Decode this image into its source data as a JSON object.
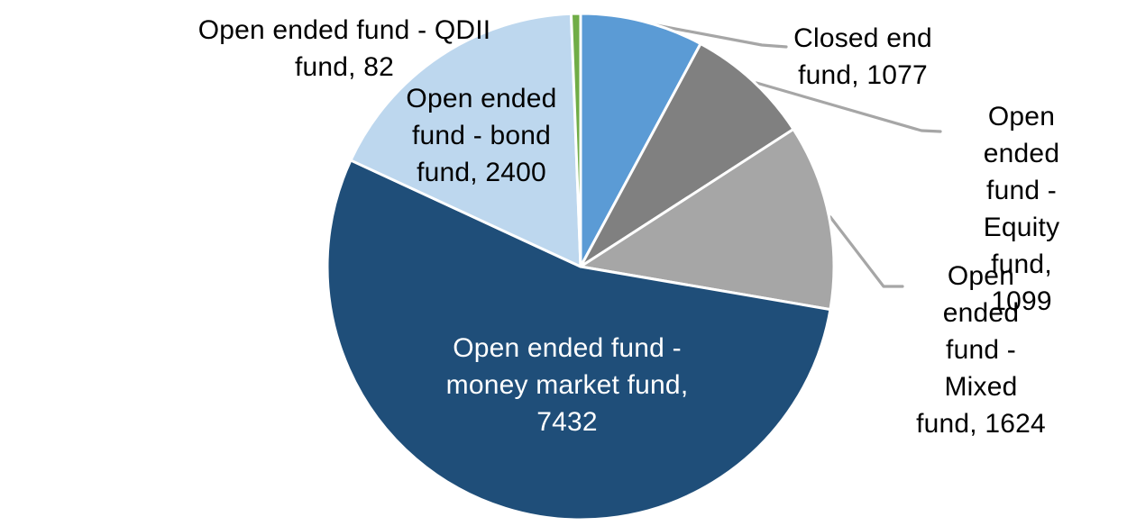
{
  "chart_data": {
    "type": "pie",
    "title": "",
    "legend_position": "none",
    "grid": false,
    "background_color": "#FFFFFF",
    "label_text_color": "#000000",
    "leader_line_color": "#A6A6A6",
    "slice_border_color": "#FFFFFF",
    "start_angle_deg": 0,
    "direction": "clockwise",
    "slices": [
      {
        "id": "closed-end-fund",
        "name": "Closed end fund",
        "value": 1077,
        "color": "#5B9BD5",
        "label_text": "Closed end\nfund, 1077",
        "label_color": "#000000",
        "label_placement": "outside-with-leader"
      },
      {
        "id": "open-ended-equity-fund",
        "name": "Open ended fund - Equity fund",
        "value": 1099,
        "color": "#808080",
        "label_text": "Open ended\nfund - Equity\nfund, 1099",
        "label_color": "#000000",
        "label_placement": "outside-with-leader"
      },
      {
        "id": "open-ended-mixed-fund",
        "name": "Open ended fund - Mixed fund",
        "value": 1624,
        "color": "#A6A6A6",
        "label_text": "Open ended\nfund - Mixed\nfund, 1624",
        "label_color": "#000000",
        "label_placement": "outside-with-leader"
      },
      {
        "id": "open-ended-money-market-fund",
        "name": "Open ended fund - money market fund",
        "value": 7432,
        "color": "#1F4E79",
        "label_text": "Open ended fund -\nmoney market fund,\n7432",
        "label_color": "#FFFFFF",
        "label_placement": "inside"
      },
      {
        "id": "open-ended-bond-fund",
        "name": "Open ended fund - bond fund",
        "value": 2400,
        "color": "#BDD7EE",
        "label_text": "Open ended\nfund - bond\nfund, 2400",
        "label_color": "#000000",
        "label_placement": "inside"
      },
      {
        "id": "open-ended-qdii-fund",
        "name": "Open ended fund - QDII fund",
        "value": 82,
        "color": "#70AD47",
        "label_text": "Open ended fund - QDII\nfund, 82",
        "label_color": "#000000",
        "label_placement": "outside"
      }
    ]
  }
}
